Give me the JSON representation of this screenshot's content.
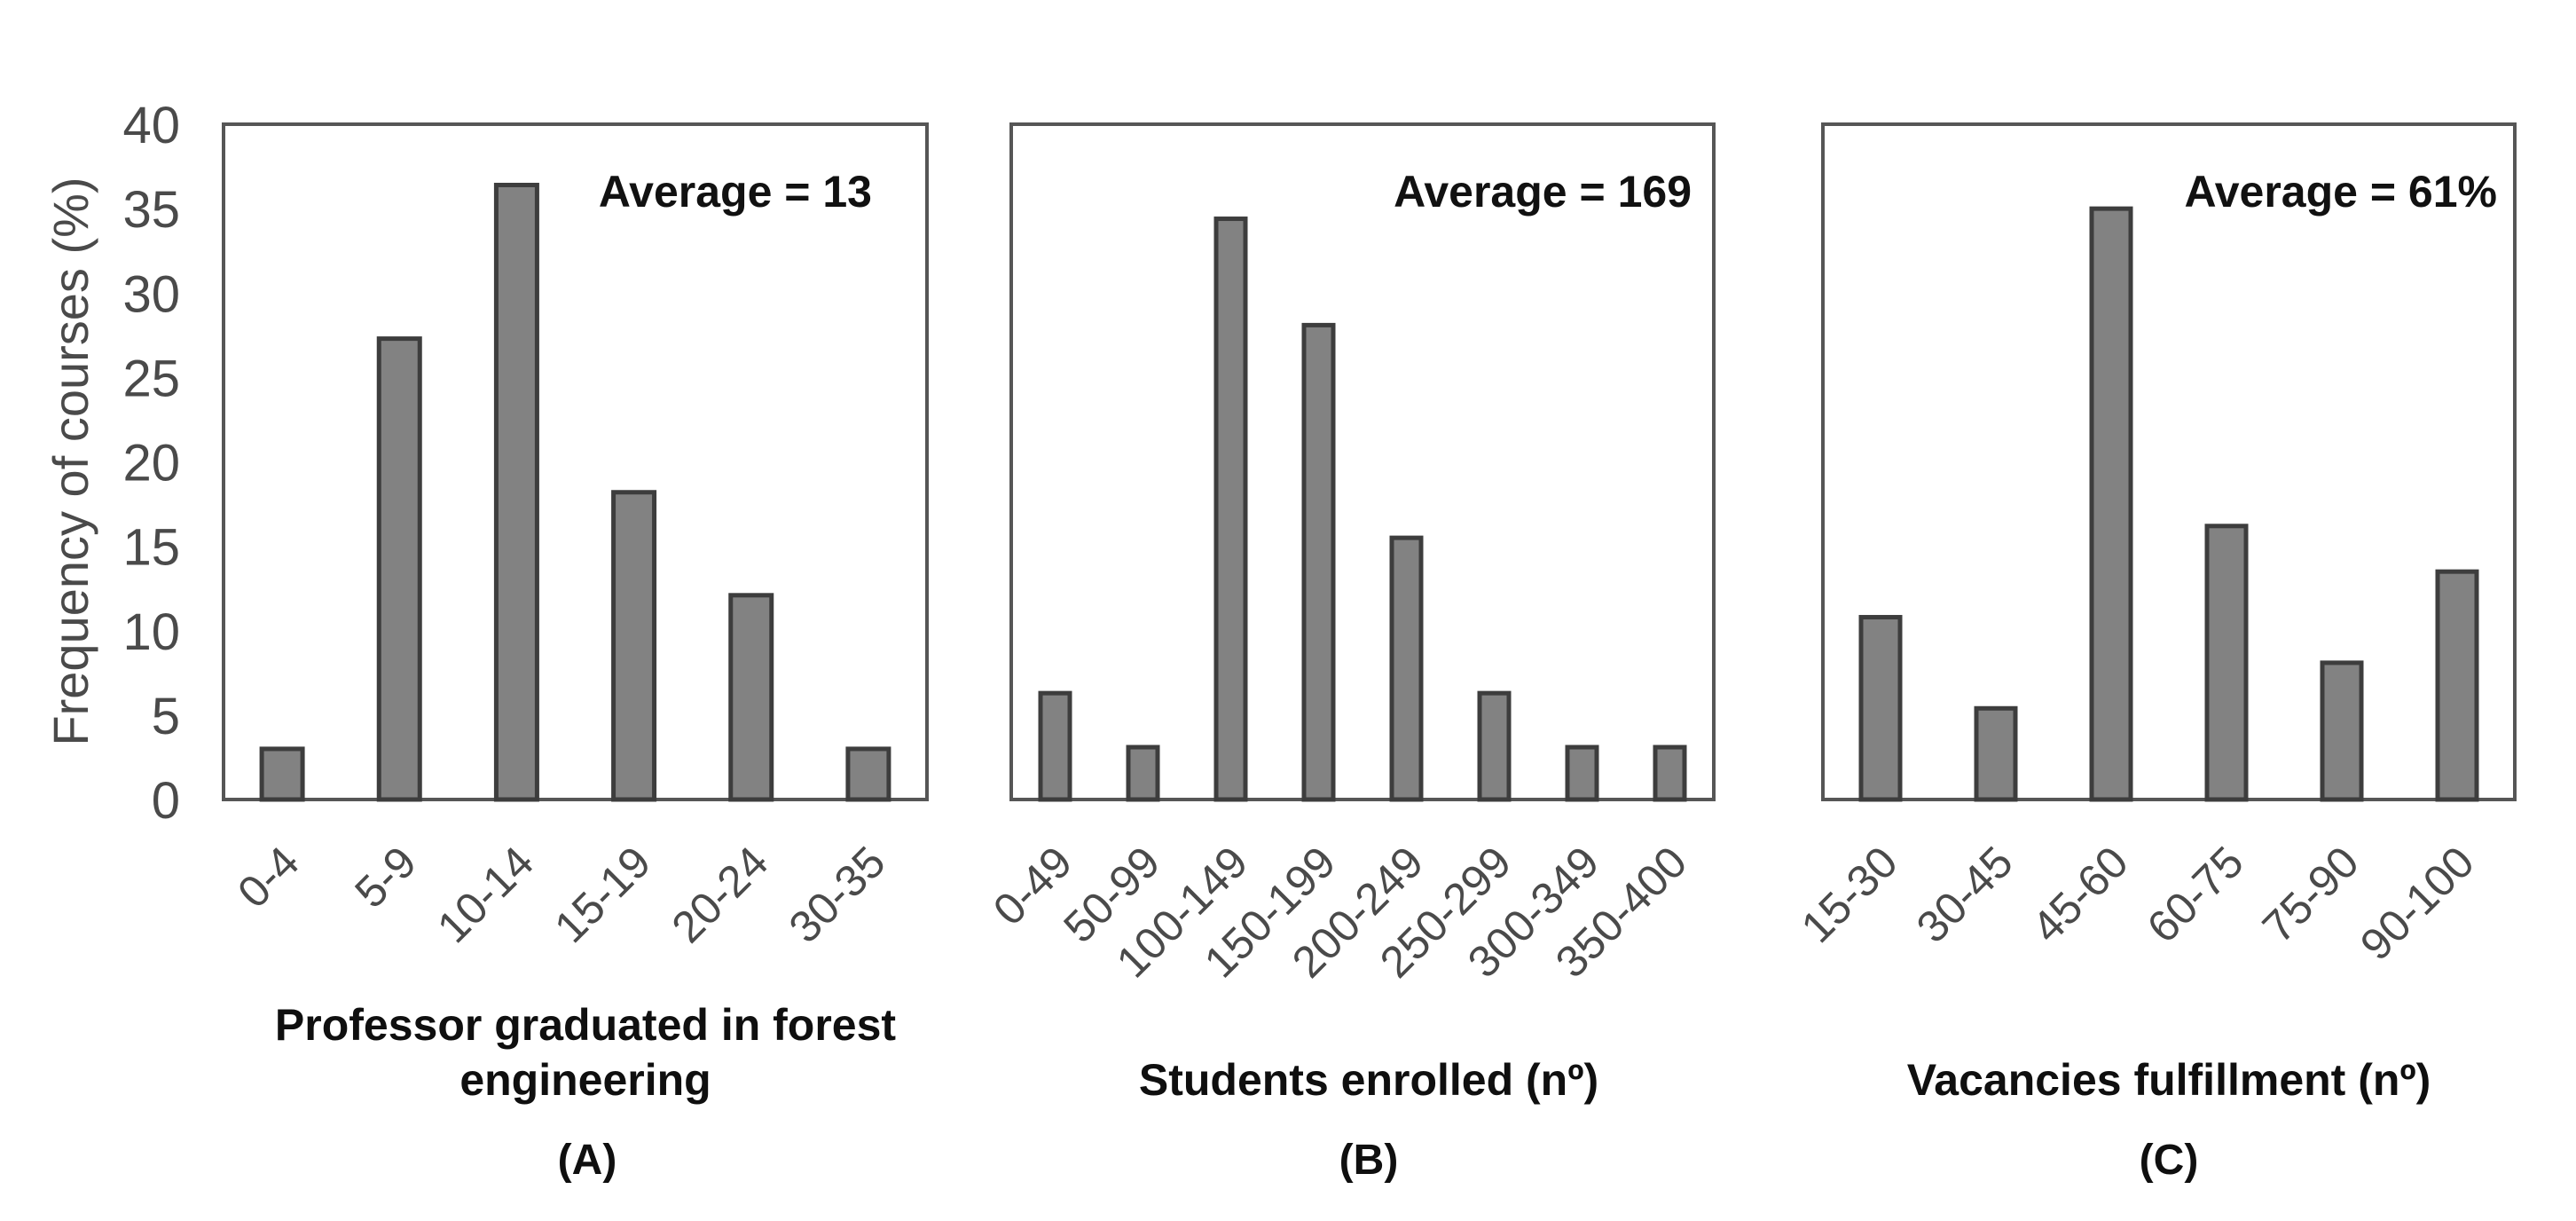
{
  "figure": {
    "background": "#ffffff",
    "bar_fill": "#828282",
    "bar_border": "#3d3d3d",
    "frame_color": "#565656",
    "tick_label_color": "#4a4a4a",
    "text_color": "#111111",
    "y_axis": {
      "label": "Frequency of courses (%)",
      "ticks": [
        0,
        5,
        10,
        15,
        20,
        25,
        30,
        35,
        40
      ],
      "range": [
        0,
        40
      ]
    }
  },
  "chart_data": [
    {
      "type": "bar",
      "panel_label": "(A)",
      "title": "Professor graduated in forest\nengineering",
      "annotation": "Average = 13",
      "categories": [
        "0-4",
        "5-9",
        "10-14",
        "15-19",
        "20-24",
        "30-35"
      ],
      "values": [
        3.0,
        27.3,
        36.4,
        18.2,
        12.1,
        3.0
      ],
      "ylabel": "Frequency of courses (%)",
      "ylim": [
        0,
        40
      ],
      "grid": false,
      "legend": null
    },
    {
      "type": "bar",
      "panel_label": "(B)",
      "title": "Students enrolled (nº)",
      "annotation": "Average = 169",
      "categories": [
        "0-49",
        "50-99",
        "100-149",
        "150-199",
        "200-249",
        "250-299",
        "300-349",
        "350-400"
      ],
      "values": [
        6.3,
        3.1,
        34.4,
        28.1,
        15.5,
        6.3,
        3.1,
        3.1
      ],
      "ylabel": "Frequency of courses (%)",
      "ylim": [
        0,
        40
      ],
      "grid": false,
      "legend": null
    },
    {
      "type": "bar",
      "panel_label": "(C)",
      "title": "Vacancies fulfillment (nº)",
      "annotation": "Average = 61%",
      "categories": [
        "15-30",
        "30-45",
        "45-60",
        "60-75",
        "75-90",
        "90-100"
      ],
      "values": [
        10.8,
        5.4,
        35.0,
        16.2,
        8.1,
        13.5
      ],
      "ylabel": "Frequency of courses (%)",
      "ylim": [
        0,
        40
      ],
      "grid": false,
      "legend": null
    }
  ]
}
